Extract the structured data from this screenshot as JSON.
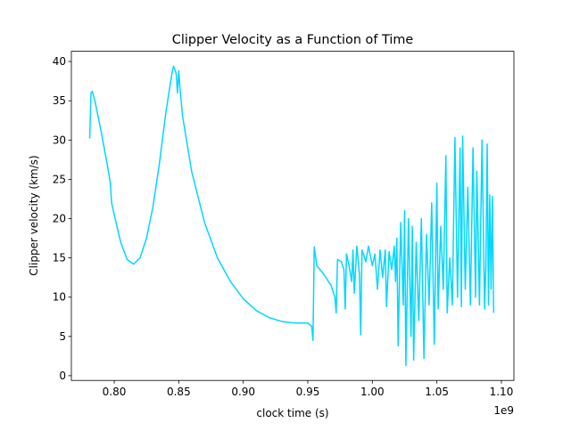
{
  "chart_data": {
    "type": "line",
    "title": "Clipper Velocity as a Function of Time",
    "x_label": "clock time (s)",
    "y_label": "Clipper velocity (km/s)",
    "x_offset_label": "1e9",
    "color": "#00d7ff",
    "x": [
      0.781,
      0.782,
      0.783,
      0.785,
      0.79,
      0.795,
      0.797,
      0.798,
      0.8,
      0.805,
      0.81,
      0.815,
      0.82,
      0.825,
      0.83,
      0.835,
      0.84,
      0.845,
      0.846,
      0.848,
      0.849,
      0.85,
      0.851,
      0.853,
      0.86,
      0.87,
      0.88,
      0.89,
      0.9,
      0.91,
      0.92,
      0.93,
      0.94,
      0.95,
      0.953,
      0.954,
      0.955,
      0.957,
      0.962,
      0.968,
      0.971,
      0.972,
      0.973,
      0.976,
      0.978,
      0.979,
      0.98,
      0.982,
      0.984,
      0.985,
      0.986,
      0.988,
      0.99,
      0.991,
      0.992,
      0.995,
      0.997,
      1.0,
      1.002,
      1.004,
      1.006,
      1.008,
      1.01,
      1.011,
      1.013,
      1.015,
      1.017,
      1.018,
      1.019,
      1.02,
      1.022,
      1.024,
      1.025,
      1.026,
      1.028,
      1.03,
      1.031,
      1.032,
      1.034,
      1.036,
      1.038,
      1.04,
      1.042,
      1.044,
      1.046,
      1.048,
      1.05,
      1.051,
      1.053,
      1.055,
      1.057,
      1.058,
      1.06,
      1.062,
      1.064,
      1.066,
      1.068,
      1.069,
      1.07,
      1.072,
      1.074,
      1.076,
      1.078,
      1.08,
      1.081,
      1.083,
      1.085,
      1.087,
      1.088,
      1.089,
      1.09,
      1.091,
      1.092,
      1.093,
      1.094
    ],
    "values": [
      30.2,
      36,
      36.2,
      35,
      31,
      26.5,
      24.5,
      22,
      20.5,
      17,
      14.8,
      14.2,
      15,
      17.5,
      21.5,
      27,
      33.5,
      38.8,
      39.4,
      38.5,
      36,
      38.8,
      36.5,
      33,
      26,
      19.5,
      15,
      12,
      9.8,
      8.3,
      7.4,
      6.9,
      6.7,
      6.7,
      6.3,
      4.5,
      16.4,
      14,
      13,
      11.5,
      10,
      8,
      14.8,
      14.5,
      13.5,
      8.5,
      15.5,
      14,
      12,
      16,
      10.5,
      16.5,
      13,
      5.2,
      16,
      14.5,
      16.5,
      14,
      15.5,
      11,
      16,
      12.5,
      16,
      8.8,
      15.8,
      13.5,
      16.5,
      12,
      17.5,
      3.8,
      19.5,
      9,
      21,
      1.3,
      20,
      5,
      19,
      2,
      17,
      7,
      20,
      2.2,
      18,
      9,
      22,
      4,
      24.5,
      8.5,
      19,
      11,
      28,
      8,
      15,
      9,
      30.3,
      10,
      29,
      8.8,
      30.5,
      11,
      24,
      9,
      29,
      10,
      26,
      9,
      30,
      8.5,
      14,
      29.5,
      9,
      23,
      11,
      22.8,
      8
    ],
    "xlim": [
      0.7668,
      1.1097
    ],
    "ylim": [
      -0.6,
      41.3
    ],
    "xticks": [
      {
        "value": 0.8,
        "label": "0.80"
      },
      {
        "value": 0.85,
        "label": "0.85"
      },
      {
        "value": 0.9,
        "label": "0.90"
      },
      {
        "value": 0.95,
        "label": "0.95"
      },
      {
        "value": 1.0,
        "label": "1.00"
      },
      {
        "value": 1.05,
        "label": "1.05"
      },
      {
        "value": 1.1,
        "label": "1.10"
      }
    ],
    "yticks": [
      0,
      5,
      10,
      15,
      20,
      25,
      30,
      35,
      40
    ]
  }
}
